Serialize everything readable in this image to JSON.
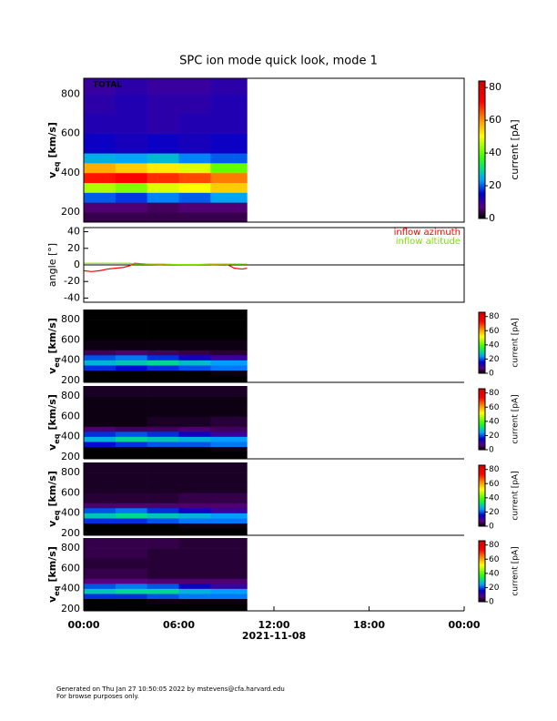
{
  "title": "SPC ion mode quick look, mode 1",
  "footer": [
    "Generated on Thu Jan 27 10:50:05 2022 by mstevens@cfa.harvard.edu",
    "For browse purposes only."
  ],
  "chart_data": [
    {
      "type": "heatmap",
      "annotation": "TOTAL",
      "xlim": [
        0,
        24
      ],
      "x_edges": [
        0,
        2,
        4,
        6,
        8,
        10.3
      ],
      "y_edges": [
        150,
        200,
        250,
        300,
        350,
        400,
        450,
        500,
        600,
        700,
        800,
        880
      ],
      "values": [
        [
          4,
          4,
          4,
          4,
          4
        ],
        [
          6,
          6,
          5,
          6,
          6
        ],
        [
          20,
          18,
          22,
          20,
          24
        ],
        [
          45,
          42,
          48,
          50,
          55
        ],
        [
          70,
          72,
          68,
          66,
          62
        ],
        [
          58,
          55,
          52,
          48,
          40
        ],
        [
          25,
          24,
          26,
          22,
          20
        ],
        [
          14,
          13,
          14,
          13,
          14
        ],
        [
          12,
          12,
          11,
          12,
          12
        ],
        [
          11,
          12,
          11,
          11,
          12
        ],
        [
          10,
          11,
          10,
          10,
          11
        ]
      ],
      "ylim": [
        150,
        880
      ],
      "yticks": [
        200,
        400,
        600,
        800
      ],
      "ylabel": {
        "main": "v",
        "sub": "eq",
        "unit": "[km/s]"
      },
      "clim": [
        0,
        84
      ],
      "cticks": [
        0,
        20,
        40,
        60,
        80
      ],
      "clabel": "current [pA]"
    },
    {
      "type": "line",
      "xlim": [
        0,
        24
      ],
      "ylim": [
        -45,
        45
      ],
      "yticks": [
        -40,
        -20,
        0,
        20,
        40
      ],
      "ylabel": "angle [°]",
      "x": [
        0,
        0.5,
        1,
        1.5,
        2,
        2.5,
        2.9,
        3.2,
        4,
        5,
        6,
        7,
        8,
        9,
        9.5,
        10,
        10.3
      ],
      "series": [
        {
          "name": "inflow azimuth",
          "color": "#ff0000",
          "values": [
            -7,
            -8,
            -7,
            -5,
            -4,
            -3,
            -1,
            2,
            1,
            0,
            0,
            0,
            0,
            1,
            -4,
            -5,
            -4
          ]
        },
        {
          "name": "inflow altitude",
          "color": "#80e000",
          "values": [
            2,
            2,
            2,
            2,
            2,
            2,
            2,
            1,
            1,
            1,
            0.5,
            0.5,
            1,
            1,
            1,
            1,
            1
          ]
        }
      ]
    },
    {
      "type": "heatmap",
      "xlim": [
        0,
        24
      ],
      "x_edges": [
        0,
        2,
        4,
        6,
        8,
        10.3
      ],
      "y_edges": [
        180,
        250,
        300,
        350,
        400,
        450,
        500,
        600,
        700,
        800,
        900
      ],
      "values": [
        [
          0,
          0,
          0,
          0,
          0
        ],
        [
          0,
          0,
          0,
          0,
          1
        ],
        [
          18,
          16,
          18,
          20,
          22
        ],
        [
          26,
          28,
          30,
          27,
          24
        ],
        [
          20,
          22,
          18,
          14,
          10
        ],
        [
          5,
          6,
          5,
          4,
          3
        ],
        [
          1,
          1,
          1,
          1,
          1
        ],
        [
          0,
          0,
          0,
          0,
          0
        ],
        [
          0,
          0,
          0,
          0,
          0
        ],
        [
          0,
          0,
          0,
          0,
          0
        ]
      ],
      "ylim": [
        180,
        900
      ],
      "yticks": [
        200,
        400,
        600,
        800
      ],
      "ylabel": {
        "main": "v",
        "sub": "eq",
        "unit": "[km/s]"
      },
      "clim": [
        0,
        86
      ],
      "cticks": [
        0,
        20,
        40,
        60,
        80
      ],
      "clabel": "current [pA]"
    },
    {
      "type": "heatmap",
      "xlim": [
        0,
        24
      ],
      "x_edges": [
        0,
        2,
        4,
        6,
        8,
        10.3
      ],
      "y_edges": [
        180,
        250,
        300,
        350,
        400,
        450,
        500,
        600,
        700,
        800,
        900
      ],
      "values": [
        [
          0,
          0,
          0,
          0,
          0
        ],
        [
          0,
          0,
          0,
          0,
          1
        ],
        [
          16,
          18,
          20,
          20,
          22
        ],
        [
          26,
          30,
          28,
          26,
          24
        ],
        [
          18,
          20,
          18,
          14,
          10
        ],
        [
          6,
          5,
          5,
          6,
          5
        ],
        [
          1,
          1,
          2,
          2,
          3
        ],
        [
          1,
          1,
          1,
          1,
          1
        ],
        [
          1,
          1,
          1,
          1,
          1
        ],
        [
          2,
          2,
          2,
          2,
          2
        ]
      ],
      "ylim": [
        180,
        900
      ],
      "yticks": [
        200,
        400,
        600,
        800
      ],
      "ylabel": {
        "main": "v",
        "sub": "eq",
        "unit": "[km/s]"
      },
      "clim": [
        0,
        86
      ],
      "cticks": [
        0,
        20,
        40,
        60,
        80
      ],
      "clabel": "current [pA]"
    },
    {
      "type": "heatmap",
      "xlim": [
        0,
        24
      ],
      "x_edges": [
        0,
        2,
        4,
        6,
        8,
        10.3
      ],
      "y_edges": [
        180,
        250,
        300,
        350,
        400,
        450,
        500,
        600,
        700,
        800,
        900
      ],
      "values": [
        [
          0,
          0,
          0,
          0,
          0
        ],
        [
          0,
          0,
          0,
          1,
          1
        ],
        [
          18,
          18,
          20,
          22,
          22
        ],
        [
          28,
          30,
          28,
          26,
          24
        ],
        [
          20,
          22,
          18,
          14,
          10
        ],
        [
          6,
          6,
          6,
          6,
          6
        ],
        [
          3,
          3,
          3,
          4,
          4
        ],
        [
          2,
          2,
          2,
          2,
          2
        ],
        [
          2,
          2,
          2,
          2,
          2
        ],
        [
          2,
          2,
          2,
          2,
          2
        ]
      ],
      "ylim": [
        180,
        900
      ],
      "yticks": [
        200,
        400,
        600,
        800
      ],
      "ylabel": {
        "main": "v",
        "sub": "eq",
        "unit": "[km/s]"
      },
      "clim": [
        0,
        86
      ],
      "cticks": [
        0,
        20,
        40,
        60,
        80
      ],
      "clabel": "current [pA]"
    },
    {
      "type": "heatmap",
      "xlim": [
        0,
        24
      ],
      "x_edges": [
        0,
        2,
        4,
        6,
        8,
        10.3
      ],
      "y_edges": [
        180,
        250,
        300,
        350,
        400,
        450,
        500,
        600,
        700,
        800,
        900
      ],
      "values": [
        [
          0,
          0,
          0,
          0,
          0
        ],
        [
          0,
          0,
          1,
          1,
          1
        ],
        [
          18,
          18,
          20,
          22,
          22
        ],
        [
          28,
          30,
          30,
          26,
          24
        ],
        [
          20,
          22,
          20,
          14,
          10
        ],
        [
          7,
          7,
          6,
          6,
          6
        ],
        [
          4,
          4,
          3,
          3,
          3
        ],
        [
          3,
          3,
          3,
          3,
          3
        ],
        [
          4,
          4,
          3,
          3,
          3
        ],
        [
          4,
          4,
          4,
          3,
          3
        ]
      ],
      "ylim": [
        180,
        900
      ],
      "yticks": [
        200,
        400,
        600,
        800
      ],
      "ylabel": {
        "main": "v",
        "sub": "eq",
        "unit": "[km/s]"
      },
      "clim": [
        0,
        86
      ],
      "cticks": [
        0,
        20,
        40,
        60,
        80
      ],
      "clabel": "current [pA]",
      "xticks": [
        {
          "value": 0,
          "label": "00:00"
        },
        {
          "value": 6,
          "label": "06:00"
        },
        {
          "value": 12,
          "label": "12:00"
        },
        {
          "value": 18,
          "label": "18:00"
        },
        {
          "value": 24,
          "label": "00:00"
        }
      ],
      "xlabel": "2021-11-08"
    }
  ]
}
